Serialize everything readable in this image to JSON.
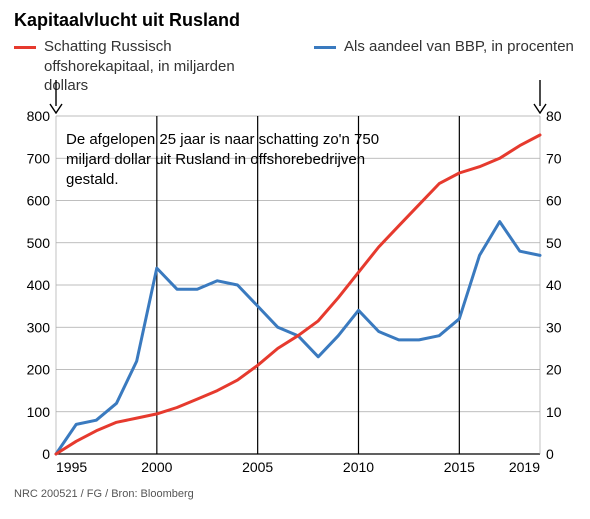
{
  "title": "Kapitaalvlucht uit Rusland",
  "legend": {
    "series1": {
      "label": "Schatting Russisch offshorekapitaal, in miljarden dollars",
      "color": "#e63a2e"
    },
    "series2": {
      "label": "Als aandeel van BBP, in procenten",
      "color": "#3a7abf"
    }
  },
  "annotation": "De afgelopen 25 jaar is naar schatting zo'n 750 miljard dollar uit Rusland in offshorebedrijven gestald.",
  "source": "NRC 200521 / FG / Bron: Bloomberg",
  "chart": {
    "type": "line-dual-axis",
    "background_color": "#ffffff",
    "grid_color": "#a9a9a9",
    "grid_width": 0.7,
    "vline_color": "#000000",
    "vline_width": 1.2,
    "axis_font_size": 14,
    "line_width": 3,
    "x": {
      "min": 1995,
      "max": 2019,
      "tick_labels": [
        "1995",
        "2000",
        "2005",
        "2010",
        "2015",
        "2019"
      ],
      "tick_values": [
        1995,
        2000,
        2005,
        2010,
        2015,
        2019
      ],
      "vlines_at": [
        2000,
        2005,
        2010,
        2015
      ]
    },
    "y_left": {
      "min": 0,
      "max": 800,
      "step": 100,
      "label_color": "#000000"
    },
    "y_right": {
      "min": 0,
      "max": 80,
      "step": 10,
      "label_color": "#000000"
    },
    "series1": {
      "axis": "left",
      "color": "#e63a2e",
      "years": [
        1995,
        1996,
        1997,
        1998,
        1999,
        2000,
        2001,
        2002,
        2003,
        2004,
        2005,
        2006,
        2007,
        2008,
        2009,
        2010,
        2011,
        2012,
        2013,
        2014,
        2015,
        2016,
        2017,
        2018,
        2019
      ],
      "values": [
        0,
        30,
        55,
        75,
        85,
        95,
        110,
        130,
        150,
        175,
        210,
        250,
        280,
        315,
        370,
        430,
        490,
        540,
        590,
        640,
        665,
        680,
        700,
        730,
        755
      ]
    },
    "series2": {
      "axis": "right",
      "color": "#3a7abf",
      "years": [
        1995,
        1996,
        1997,
        1998,
        1999,
        2000,
        2001,
        2002,
        2003,
        2004,
        2005,
        2006,
        2007,
        2008,
        2009,
        2010,
        2011,
        2012,
        2013,
        2014,
        2015,
        2016,
        2017,
        2018,
        2019
      ],
      "values": [
        0,
        7,
        8,
        12,
        22,
        44,
        39,
        39,
        41,
        40,
        35,
        30,
        28,
        23,
        28,
        34,
        29,
        27,
        27,
        28,
        32,
        47,
        55,
        48,
        47
      ]
    }
  }
}
